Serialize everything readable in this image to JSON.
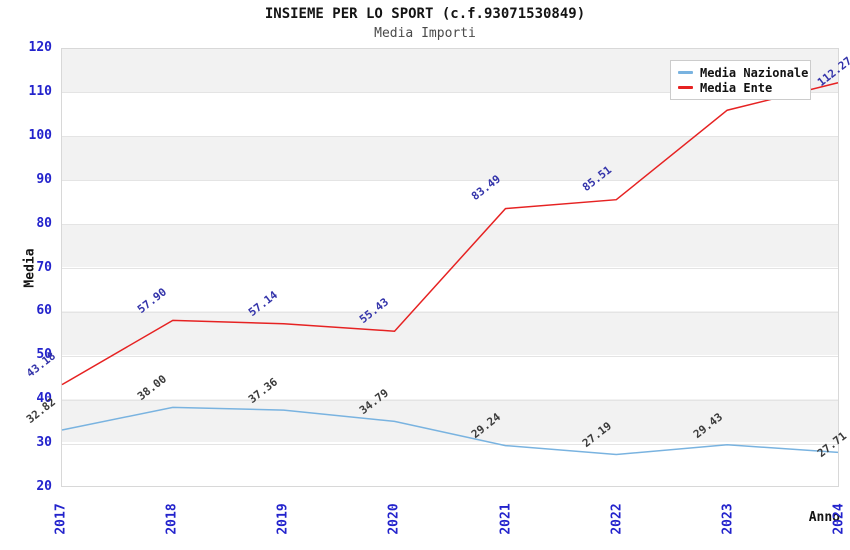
{
  "chart_data": {
    "type": "line",
    "title": "INSIEME PER LO SPORT (c.f.93071530849)",
    "subtitle": "Media Importi",
    "xlabel": "Anno",
    "ylabel": "Media",
    "x_categories": [
      "2017",
      "2018",
      "2019",
      "2020",
      "2021",
      "2022",
      "2023",
      "2024"
    ],
    "ylim": [
      20,
      120
    ],
    "yticks": [
      120,
      110,
      100,
      90,
      80,
      70,
      60,
      50,
      40,
      30,
      20
    ],
    "grid": "horizontal-bands",
    "plot_band_colors": [
      "#f2f2f2",
      "#ffffff"
    ],
    "axis_tick_color": "#2323cc",
    "legend_position": "top-right",
    "series": [
      {
        "name": "Media Nazionale",
        "color": "#79b3e0",
        "label_color": "#3b3b3b",
        "values": [
          32.82,
          38.0,
          37.36,
          34.79,
          29.24,
          27.19,
          29.43,
          27.71
        ],
        "point_labels": [
          "32.82",
          "38.00",
          "37.36",
          "34.79",
          "29.24",
          "27.19",
          "29.43",
          "27.71"
        ]
      },
      {
        "name": "Media Ente",
        "color": "#e62222",
        "label_color": "#3434aa",
        "values": [
          43.18,
          57.9,
          57.14,
          55.43,
          83.49,
          85.51,
          106.0,
          112.27
        ],
        "point_labels": [
          "43.18",
          "57.90",
          "57.14",
          "55.43",
          "83.49",
          "85.51",
          "",
          "112.27"
        ]
      }
    ]
  }
}
